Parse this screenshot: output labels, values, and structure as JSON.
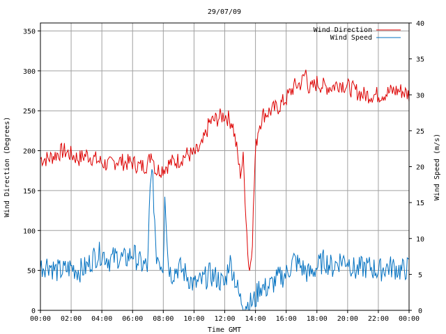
{
  "chart_data": {
    "type": "line",
    "title": "29/07/09",
    "xlabel": "Time GMT",
    "ylabel_left": "Wind Direction (Degrees)",
    "ylabel_right": "Wind Speed (m/s)",
    "x_ticks": [
      "00:00",
      "02:00",
      "04:00",
      "06:00",
      "08:00",
      "10:00",
      "12:00",
      "14:00",
      "16:00",
      "18:00",
      "20:00",
      "22:00",
      "00:00"
    ],
    "y_left_ticks": [
      0,
      50,
      100,
      150,
      200,
      250,
      300,
      350
    ],
    "y_right_ticks": [
      0,
      5,
      10,
      15,
      20,
      25,
      30,
      35,
      40
    ],
    "x_range_hours": [
      0,
      24
    ],
    "y_left_range": [
      0,
      360
    ],
    "y_right_range": [
      0,
      40
    ],
    "grid": true,
    "legend_position": "top-right",
    "series": [
      {
        "name": "Wind Direction",
        "axis": "left",
        "color": "#dd0000",
        "x_hours": [
          0,
          0.5,
          1,
          1.5,
          2,
          2.5,
          3,
          3.5,
          4,
          4.5,
          5,
          5.5,
          6,
          6.5,
          7,
          7.25,
          7.5,
          8,
          8.5,
          9,
          9.5,
          10,
          10.5,
          11,
          11.5,
          12,
          12.5,
          12.8,
          13,
          13.2,
          13.5,
          13.6,
          13.8,
          14,
          14.2,
          14.5,
          15,
          15.5,
          16,
          16.5,
          17,
          17.3,
          17.5,
          18,
          18.5,
          19,
          19.5,
          20,
          20.5,
          21,
          21.5,
          22,
          22.5,
          23,
          23.5,
          24
        ],
        "values": [
          190,
          190,
          195,
          200,
          195,
          190,
          195,
          190,
          185,
          182,
          188,
          185,
          185,
          180,
          183,
          200,
          175,
          178,
          185,
          188,
          195,
          195,
          205,
          235,
          240,
          245,
          235,
          200,
          170,
          190,
          75,
          45,
          90,
          200,
          230,
          245,
          250,
          255,
          265,
          280,
          285,
          300,
          275,
          285,
          280,
          280,
          285,
          280,
          275,
          270,
          270,
          270,
          272,
          275,
          275,
          270
        ]
      },
      {
        "name": "Wind Speed",
        "axis": "right",
        "color": "#0070c0",
        "x_hours": [
          0,
          0.5,
          1,
          1.5,
          2,
          2.5,
          3,
          3.5,
          4,
          4.5,
          5,
          5.5,
          6,
          6.5,
          7,
          7.1,
          7.3,
          7.5,
          8,
          8.1,
          8.3,
          8.5,
          9,
          9.5,
          10,
          10.5,
          11,
          11.5,
          12,
          12.3,
          12.6,
          13,
          13.3,
          13.6,
          14,
          14.3,
          14.6,
          15,
          15.5,
          16,
          16.5,
          17,
          17.5,
          18,
          18.5,
          19,
          19.5,
          20,
          20.5,
          21,
          21.5,
          22,
          22.5,
          23,
          23.5,
          24
        ],
        "values": [
          6,
          6.5,
          5.5,
          5.5,
          6,
          5.5,
          6,
          7.5,
          8,
          7,
          7.5,
          7,
          8,
          6.5,
          6,
          15,
          20,
          8,
          6,
          17,
          7,
          5,
          6,
          5,
          3.5,
          4,
          5,
          4.5,
          3.5,
          7,
          5,
          1.5,
          1,
          0.8,
          1.5,
          3.5,
          3,
          3.5,
          4.5,
          5,
          7,
          6,
          5,
          6,
          7,
          6,
          7,
          7,
          5.5,
          6,
          6,
          5.5,
          6,
          6,
          5.5,
          6
        ]
      }
    ]
  }
}
